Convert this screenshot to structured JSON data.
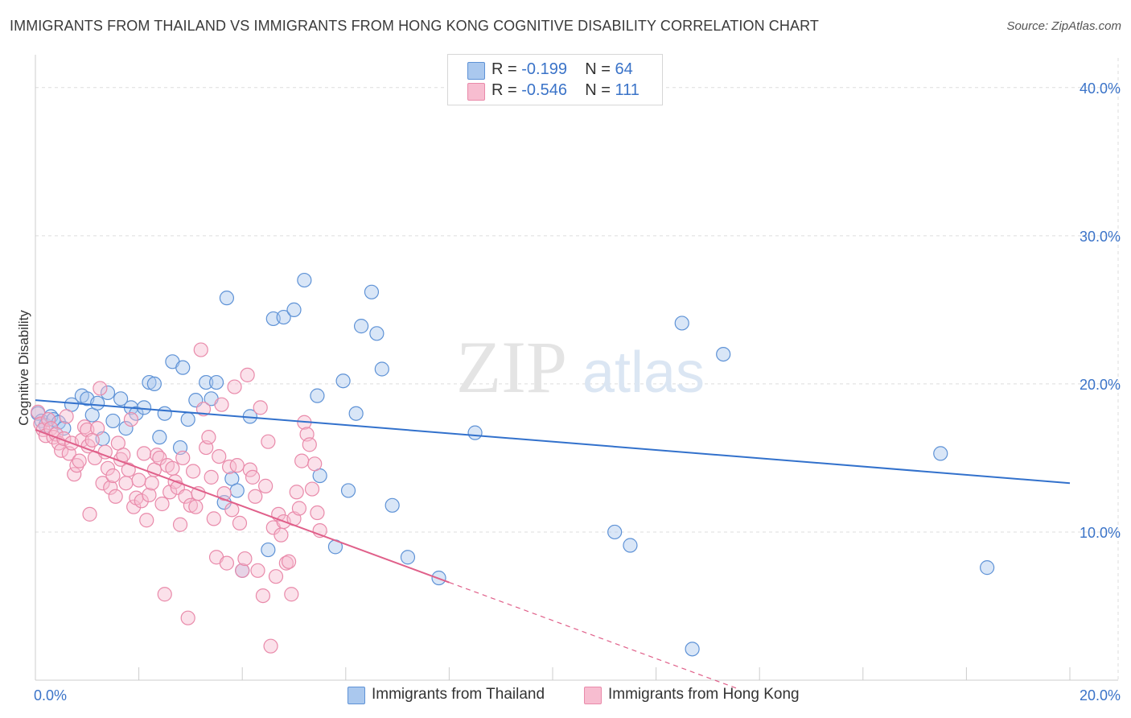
{
  "title": "IMMIGRANTS FROM THAILAND VS IMMIGRANTS FROM HONG KONG COGNITIVE DISABILITY CORRELATION CHART",
  "source": "Source: ZipAtlas.com",
  "watermark": {
    "zip": "ZIP",
    "atlas": "atlas"
  },
  "legend": {
    "rows": [
      {
        "r_label": "R = ",
        "r_value": "-0.199",
        "n_label": "N = ",
        "n_value": "64"
      },
      {
        "r_label": "R = ",
        "r_value": "-0.546",
        "n_label": "N = ",
        "n_value": "111"
      }
    ]
  },
  "colors": {
    "thailand_fill": "#aac8ee",
    "thailand_stroke": "#5e92d6",
    "thailand_line": "#3271cc",
    "hongkong_fill": "#f7bdd0",
    "hongkong_stroke": "#e98aaa",
    "hongkong_line": "#e0608a",
    "tick_label": "#3a73c8",
    "grid": "#dddddd"
  },
  "chart_data": {
    "type": "scatter",
    "xlabel": "",
    "ylabel": "Cognitive Disability",
    "xlim": [
      0,
      20
    ],
    "ylim": [
      0,
      42
    ],
    "x_tick_labels": [
      "0.0%",
      "20.0%"
    ],
    "y_ticks": [
      10,
      20,
      30,
      40
    ],
    "y_tick_labels": [
      "10.0%",
      "20.0%",
      "30.0%",
      "40.0%"
    ],
    "grid": true,
    "legend_position": "bottom-center",
    "series": [
      {
        "name": "Immigrants from Thailand",
        "points": [
          [
            0.05,
            18.0
          ],
          [
            0.12,
            17.5
          ],
          [
            0.2,
            17.2
          ],
          [
            0.3,
            17.8
          ],
          [
            0.35,
            17.6
          ],
          [
            0.45,
            17.4
          ],
          [
            0.55,
            17.0
          ],
          [
            0.7,
            18.6
          ],
          [
            0.9,
            19.2
          ],
          [
            1.0,
            19.0
          ],
          [
            1.1,
            17.9
          ],
          [
            1.2,
            18.7
          ],
          [
            1.3,
            16.3
          ],
          [
            1.4,
            19.4
          ],
          [
            1.5,
            17.5
          ],
          [
            1.65,
            19.0
          ],
          [
            1.75,
            17.0
          ],
          [
            1.85,
            18.4
          ],
          [
            1.95,
            18.0
          ],
          [
            2.1,
            18.4
          ],
          [
            2.2,
            20.1
          ],
          [
            2.3,
            20.0
          ],
          [
            2.4,
            16.4
          ],
          [
            2.5,
            18.0
          ],
          [
            2.65,
            21.5
          ],
          [
            2.8,
            15.7
          ],
          [
            2.85,
            21.1
          ],
          [
            2.95,
            17.6
          ],
          [
            3.1,
            18.9
          ],
          [
            3.3,
            20.1
          ],
          [
            3.4,
            19.0
          ],
          [
            3.5,
            20.1
          ],
          [
            3.65,
            12.0
          ],
          [
            3.7,
            25.8
          ],
          [
            3.8,
            13.6
          ],
          [
            3.9,
            12.8
          ],
          [
            4.0,
            7.4
          ],
          [
            4.15,
            17.8
          ],
          [
            4.5,
            8.8
          ],
          [
            4.6,
            24.4
          ],
          [
            4.8,
            24.5
          ],
          [
            5.0,
            25.0
          ],
          [
            5.2,
            27.0
          ],
          [
            5.45,
            19.2
          ],
          [
            5.5,
            13.8
          ],
          [
            5.8,
            9.0
          ],
          [
            5.95,
            20.2
          ],
          [
            6.05,
            12.8
          ],
          [
            6.2,
            18.0
          ],
          [
            6.3,
            23.9
          ],
          [
            6.5,
            26.2
          ],
          [
            6.6,
            23.4
          ],
          [
            6.7,
            21.0
          ],
          [
            6.9,
            11.8
          ],
          [
            7.2,
            8.3
          ],
          [
            7.8,
            6.9
          ],
          [
            8.5,
            16.7
          ],
          [
            11.2,
            10.0
          ],
          [
            11.5,
            9.1
          ],
          [
            12.5,
            24.1
          ],
          [
            13.3,
            22.0
          ],
          [
            17.5,
            15.3
          ],
          [
            18.4,
            7.6
          ],
          [
            12.7,
            2.1
          ]
        ],
        "trend": {
          "x": [
            0,
            20
          ],
          "y": [
            18.9,
            13.3
          ]
        }
      },
      {
        "name": "Immigrants from Hong Kong",
        "points": [
          [
            0.05,
            18.1
          ],
          [
            0.1,
            17.3
          ],
          [
            0.15,
            16.9
          ],
          [
            0.2,
            16.5
          ],
          [
            0.25,
            17.6
          ],
          [
            0.3,
            17.0
          ],
          [
            0.35,
            16.4
          ],
          [
            0.4,
            16.6
          ],
          [
            0.45,
            16.0
          ],
          [
            0.5,
            15.5
          ],
          [
            0.55,
            16.3
          ],
          [
            0.6,
            17.8
          ],
          [
            0.65,
            15.3
          ],
          [
            0.7,
            16.0
          ],
          [
            0.75,
            13.9
          ],
          [
            0.8,
            14.5
          ],
          [
            0.85,
            14.8
          ],
          [
            0.9,
            16.2
          ],
          [
            0.95,
            17.1
          ],
          [
            1.0,
            16.9
          ],
          [
            1.02,
            15.8
          ],
          [
            1.05,
            11.2
          ],
          [
            1.1,
            16.2
          ],
          [
            1.15,
            15.0
          ],
          [
            1.2,
            17.0
          ],
          [
            1.25,
            19.7
          ],
          [
            1.3,
            13.3
          ],
          [
            1.35,
            15.4
          ],
          [
            1.4,
            14.3
          ],
          [
            1.45,
            13.0
          ],
          [
            1.5,
            13.8
          ],
          [
            1.55,
            12.4
          ],
          [
            1.6,
            16.0
          ],
          [
            1.65,
            14.9
          ],
          [
            1.7,
            15.2
          ],
          [
            1.75,
            13.3
          ],
          [
            1.8,
            14.2
          ],
          [
            1.85,
            17.6
          ],
          [
            1.9,
            11.7
          ],
          [
            1.95,
            12.3
          ],
          [
            2.0,
            13.5
          ],
          [
            2.05,
            12.1
          ],
          [
            2.1,
            15.3
          ],
          [
            2.15,
            10.8
          ],
          [
            2.2,
            12.5
          ],
          [
            2.25,
            13.3
          ],
          [
            2.3,
            14.2
          ],
          [
            2.35,
            15.2
          ],
          [
            2.4,
            15.0
          ],
          [
            2.45,
            11.9
          ],
          [
            2.5,
            5.8
          ],
          [
            2.55,
            14.5
          ],
          [
            2.6,
            12.7
          ],
          [
            2.65,
            14.3
          ],
          [
            2.7,
            13.4
          ],
          [
            2.75,
            13.0
          ],
          [
            2.8,
            10.5
          ],
          [
            2.85,
            15.0
          ],
          [
            2.9,
            12.4
          ],
          [
            2.95,
            4.2
          ],
          [
            3.0,
            11.8
          ],
          [
            3.05,
            14.1
          ],
          [
            3.1,
            11.7
          ],
          [
            3.15,
            12.6
          ],
          [
            3.2,
            22.3
          ],
          [
            3.25,
            18.3
          ],
          [
            3.3,
            15.7
          ],
          [
            3.35,
            16.4
          ],
          [
            3.4,
            13.7
          ],
          [
            3.45,
            10.9
          ],
          [
            3.5,
            8.3
          ],
          [
            3.55,
            15.1
          ],
          [
            3.6,
            18.6
          ],
          [
            3.65,
            12.6
          ],
          [
            3.7,
            7.9
          ],
          [
            3.75,
            14.4
          ],
          [
            3.8,
            11.5
          ],
          [
            3.85,
            19.8
          ],
          [
            3.9,
            14.5
          ],
          [
            3.95,
            10.6
          ],
          [
            4.0,
            7.4
          ],
          [
            4.05,
            8.2
          ],
          [
            4.1,
            20.6
          ],
          [
            4.15,
            14.2
          ],
          [
            4.2,
            13.7
          ],
          [
            4.25,
            12.4
          ],
          [
            4.3,
            7.4
          ],
          [
            4.35,
            18.4
          ],
          [
            4.4,
            5.7
          ],
          [
            4.45,
            13.1
          ],
          [
            4.5,
            16.1
          ],
          [
            4.55,
            2.3
          ],
          [
            4.6,
            10.3
          ],
          [
            4.65,
            7.0
          ],
          [
            4.7,
            11.2
          ],
          [
            4.75,
            9.8
          ],
          [
            4.8,
            10.7
          ],
          [
            4.85,
            7.9
          ],
          [
            4.9,
            8.0
          ],
          [
            4.95,
            5.8
          ],
          [
            5.0,
            10.9
          ],
          [
            5.05,
            12.7
          ],
          [
            5.1,
            11.6
          ],
          [
            5.15,
            14.8
          ],
          [
            5.2,
            17.4
          ],
          [
            5.25,
            16.6
          ],
          [
            5.3,
            15.9
          ],
          [
            5.35,
            12.9
          ],
          [
            5.4,
            14.6
          ],
          [
            5.45,
            11.3
          ],
          [
            5.5,
            10.1
          ]
        ],
        "trend": {
          "x": [
            0,
            8.0
          ],
          "y": [
            16.9,
            6.6
          ]
        },
        "trend_extension": {
          "x": [
            8.0,
            13.6
          ],
          "y": [
            6.6,
            -0.6
          ]
        }
      }
    ]
  }
}
